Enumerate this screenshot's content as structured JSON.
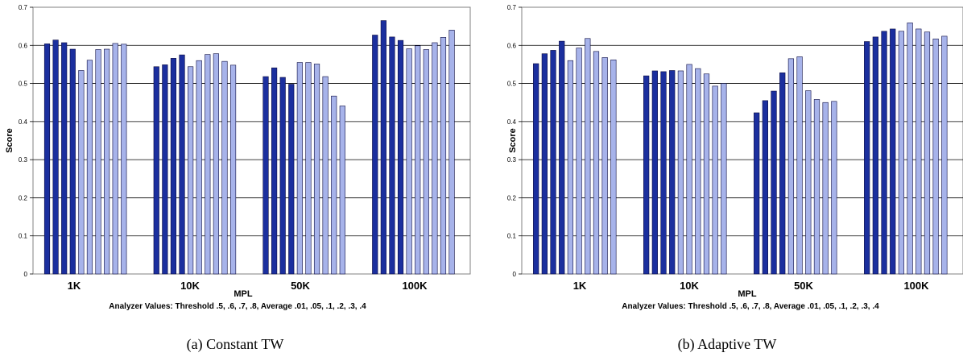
{
  "colors": {
    "threshold_fill": "#1b2f9e",
    "average_fill": "#a7b3ea",
    "bar_stroke": "#0a0a40"
  },
  "panels": [
    {
      "caption": "(a) Constant TW",
      "chart_data": {
        "type": "bar",
        "title": "",
        "xlabel": "MPL",
        "ylabel": "Score",
        "x_note": "Analyzer Values: Threshold .5, .6, .7, .8, Average .01, .05, .1, .2, .3, .4",
        "ylim": [
          0,
          0.7
        ],
        "yticks": [
          "0",
          "0.1",
          "0.2",
          "0.3",
          "0.4",
          "0.5",
          "0.6",
          "0.7"
        ],
        "categories": [
          "1K",
          "10K",
          "50K",
          "100K"
        ],
        "grid": true,
        "series_kinds": [
          "threshold",
          "threshold",
          "threshold",
          "threshold",
          "average",
          "average",
          "average",
          "average",
          "average",
          "average"
        ],
        "values": [
          [
            0.604,
            0.614,
            0.607,
            0.59,
            0.534,
            0.561,
            0.589,
            0.59,
            0.605,
            0.603
          ],
          [
            0.544,
            0.549,
            0.566,
            0.575,
            0.544,
            0.56,
            0.576,
            0.578,
            0.558,
            0.548
          ],
          [
            0.518,
            0.541,
            0.516,
            0.498,
            0.555,
            0.555,
            0.551,
            0.518,
            0.467,
            0.441
          ],
          [
            0.627,
            0.665,
            0.622,
            0.613,
            0.591,
            0.599,
            0.589,
            0.607,
            0.621,
            0.64
          ]
        ]
      }
    },
    {
      "caption": "(b) Adaptive TW",
      "chart_data": {
        "type": "bar",
        "title": "",
        "xlabel": "MPL",
        "ylabel": "Score",
        "x_note": "Analyzer Values: Threshold .5, .6, .7, .8, Average .01, .05, .1, .2, .3, .4",
        "ylim": [
          0,
          0.7
        ],
        "yticks": [
          "0",
          "0.1",
          "0.2",
          "0.3",
          "0.4",
          "0.5",
          "0.6",
          "0.7"
        ],
        "categories": [
          "1K",
          "10K",
          "50K",
          "100K"
        ],
        "grid": true,
        "series_kinds": [
          "threshold",
          "threshold",
          "threshold",
          "threshold",
          "average",
          "average",
          "average",
          "average",
          "average",
          "average"
        ],
        "values": [
          [
            0.552,
            0.578,
            0.587,
            0.611,
            0.56,
            0.593,
            0.618,
            0.584,
            0.568,
            0.562
          ],
          [
            0.52,
            0.533,
            0.531,
            0.534,
            0.533,
            0.55,
            0.539,
            0.525,
            0.493,
            0.5
          ],
          [
            0.423,
            0.455,
            0.48,
            0.528,
            0.565,
            0.57,
            0.481,
            0.458,
            0.45,
            0.453
          ],
          [
            0.61,
            0.622,
            0.637,
            0.643,
            0.637,
            0.659,
            0.643,
            0.635,
            0.617,
            0.624
          ]
        ]
      }
    }
  ]
}
